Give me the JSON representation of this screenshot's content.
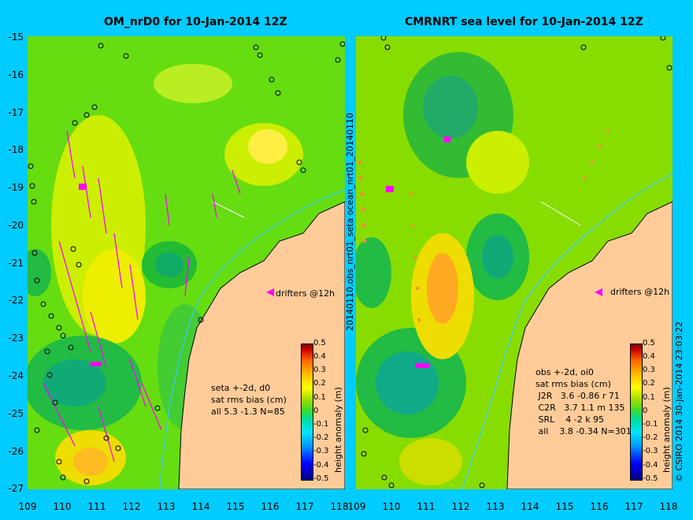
{
  "left": {
    "title": "OM_nrD0 for 10-Jan-2014 12Z",
    "stats": "seta +-2d, d0\nsat rms bias (cm)\nall 5.3 -1.3 N=85",
    "drifters": "drifters @12h"
  },
  "right": {
    "title": "CMRNRT sea level  for 10-Jan-2014 12Z",
    "stats": "obs +-2d, oi0\nsat rms bias (cm)\n J2R   3.6 -0.86 r 71\n C2R   3.7 1.1 m 135\n SRL    4 -2 k 95\n all    3.8 -0.34 N=301",
    "drifters": "drifters @12h"
  },
  "y_ticks": [
    "-15",
    "-16",
    "-17",
    "-18",
    "-19",
    "-20",
    "-21",
    "-22",
    "-23",
    "-24",
    "-25",
    "-26",
    "-27"
  ],
  "x_ticks_left": [
    "109",
    "110",
    "111",
    "112",
    "113",
    "114",
    "115",
    "116",
    "117",
    "118"
  ],
  "x_ticks_right": [
    "109",
    "110",
    "111",
    "112",
    "113",
    "114",
    "115",
    "116",
    "117",
    "118"
  ],
  "colorbar": {
    "ticks": [
      "0.5",
      "0.4",
      "0.3",
      "0.2",
      "0.1",
      "0",
      "-0.1",
      "-0.2",
      "-0.3",
      "-0.4",
      "-0.5"
    ],
    "label": "height anomaly (m)"
  },
  "vertical_mid": "20140110.obs_nrt01_seta      ocean_nrt01_20140110",
  "credit": "© CSIRO 2014   30-Jan-2014 23:03:22",
  "colors": {
    "background": "#00ccff",
    "land": "#ffcc99",
    "sea_mid": "#55dd22",
    "drifter": "#ff00ff",
    "coast_line": "#33ccff"
  }
}
